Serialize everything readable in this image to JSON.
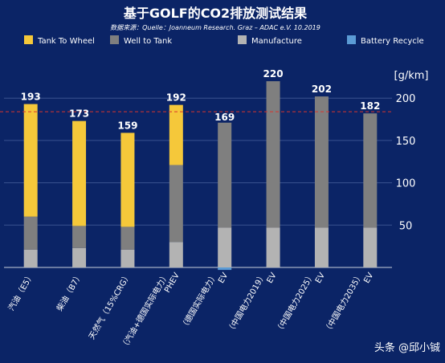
{
  "chart_data": {
    "type": "bar",
    "stacked": true,
    "title": "基于GOLF的CO2排放测试结果",
    "subtitle": "数据来源：Quelle：Joanneum Research. Graz – ADAC e.V.  10.2019",
    "ylabel": "[g/km]",
    "ylim": [
      0,
      230
    ],
    "yticks": [
      "50",
      "100",
      "150",
      "200"
    ],
    "grid": true,
    "legend_position": "top",
    "categories": [
      [
        "汽油（E5）"
      ],
      [
        "柴油（B7）"
      ],
      [
        "天然气（15%CRG）"
      ],
      [
        "PHEV",
        "（汽油+德国实际电力）"
      ],
      [
        "EV",
        "（德国实际电力）"
      ],
      [
        "EV",
        "（中国电力2019）"
      ],
      [
        "EV",
        "（中国电力2025）"
      ],
      [
        "EV",
        "（中国电力2035）"
      ]
    ],
    "totals": [
      "193",
      "173",
      "159",
      "192",
      "169",
      "220",
      "202",
      "182"
    ],
    "series": [
      {
        "name": "Manufacture",
        "color": "#b3b3b3",
        "values": [
          21,
          23,
          21,
          30,
          47,
          47,
          47,
          47
        ]
      },
      {
        "name": "Well to Tank",
        "color": "#7f7f7f",
        "values": [
          39,
          26,
          27,
          91,
          124,
          173,
          155,
          135
        ]
      },
      {
        "name": "Tank To Wheel",
        "color": "#f5c83a",
        "values": [
          133,
          124,
          111,
          71,
          0,
          0,
          0,
          0
        ]
      },
      {
        "name": "Battery Recycle",
        "color": "#5b9bd5",
        "values": [
          0,
          0,
          0,
          0,
          -2,
          0,
          0,
          0
        ]
      }
    ],
    "legend_order": [
      "Tank To Wheel",
      "Well to Tank",
      "Manufacture",
      "Battery Recycle"
    ],
    "reference_line": {
      "value": 184,
      "color": "#d9352e",
      "style": "dashed"
    }
  },
  "watermark": "头条 @邱小铖"
}
